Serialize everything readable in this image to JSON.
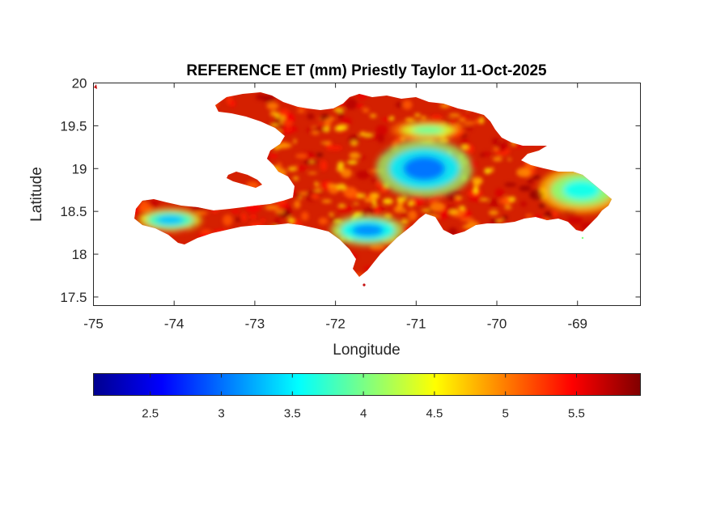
{
  "chart_data": {
    "type": "heatmap",
    "title": "REFERENCE ET (mm) Priestly Taylor 11-Oct-2025",
    "xlabel": "Longitude",
    "ylabel": "Latitude",
    "xlim": [
      -75,
      -68.22
    ],
    "ylim": [
      17.4,
      20
    ],
    "x_ticks": [
      -75,
      -74,
      -73,
      -72,
      -71,
      -70,
      -69
    ],
    "x_tick_labels": [
      "-75",
      "-74",
      "-73",
      "-72",
      "-71",
      "-70",
      "-69"
    ],
    "y_ticks": [
      17.5,
      18,
      18.5,
      19,
      19.5,
      20
    ],
    "y_tick_labels": [
      "17.5",
      "18",
      "18.5",
      "19",
      "19.5",
      "20"
    ],
    "grid": false,
    "colormap": "jet",
    "colorbar": {
      "orientation": "horizontal",
      "location": "below",
      "range": [
        2.1,
        5.95
      ],
      "ticks": [
        2.5,
        3,
        3.5,
        4,
        4.5,
        5,
        5.5
      ],
      "tick_labels": [
        "2.5",
        "3",
        "3.5",
        "4",
        "4.5",
        "5",
        "5.5"
      ]
    },
    "colorbar_stops": [
      "#00008f",
      "#0000ff",
      "#0080ff",
      "#00ffff",
      "#80ff80",
      "#ffff00",
      "#ff8000",
      "#ff0000",
      "#800000"
    ],
    "dominant_color": "#d42000",
    "field_description": "Reference ET over Hispaniola; mostly 5-5.9 mm (red), minima ~3 mm (blue) over central highlands near -71 lon / 19 lat, southwest peninsula and eastern coast",
    "low_et_zones": [
      {
        "lon": -70.9,
        "lat": 19.0,
        "value": 3.0
      },
      {
        "lon": -71.6,
        "lat": 18.28,
        "value": 3.1
      },
      {
        "lon": -74.05,
        "lat": 18.4,
        "value": 3.3
      },
      {
        "lon": -68.95,
        "lat": 18.75,
        "value": 3.6
      },
      {
        "lon": -70.85,
        "lat": 19.45,
        "value": 3.9
      }
    ]
  }
}
